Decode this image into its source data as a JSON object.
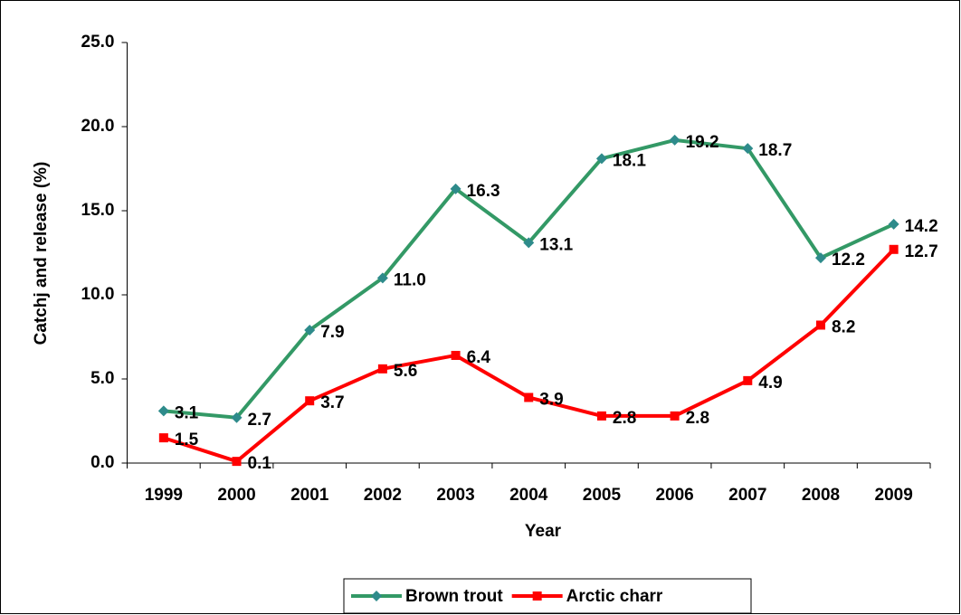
{
  "chart_data": {
    "type": "line",
    "categories": [
      "1999",
      "2000",
      "2001",
      "2002",
      "2003",
      "2004",
      "2005",
      "2006",
      "2007",
      "2008",
      "2009"
    ],
    "series": [
      {
        "name": "Brown trout",
        "color": "#339966",
        "marker": "diamond",
        "marker_color": "#2e8b8b",
        "values": [
          3.1,
          2.7,
          7.9,
          11.0,
          16.3,
          13.1,
          18.1,
          19.2,
          18.7,
          12.2,
          14.2
        ],
        "value_labels": [
          "3.1",
          "2.7",
          "7.9",
          "11.0",
          "16.3",
          "13.1",
          "18.1",
          "19.2",
          "18.7",
          "12.2",
          "14.2"
        ]
      },
      {
        "name": "Arctic charr",
        "color": "#ff0000",
        "marker": "square",
        "marker_color": "#ff0000",
        "values": [
          1.5,
          0.1,
          3.7,
          5.6,
          6.4,
          3.9,
          2.8,
          2.8,
          4.9,
          8.2,
          12.7
        ],
        "value_labels": [
          "1.5",
          "0.1",
          "3.7",
          "5.6",
          "6.4",
          "3.9",
          "2.8",
          "2.8",
          "4.9",
          "8.2",
          "12.7"
        ]
      }
    ],
    "x_label": "Year",
    "y_label": "Catchj and release (%)",
    "ylim": [
      0,
      25
    ],
    "yticks": [
      {
        "value": 0,
        "label": "0.0"
      },
      {
        "value": 5,
        "label": "5.0"
      },
      {
        "value": 10,
        "label": "10.0"
      },
      {
        "value": 15,
        "label": "15.0"
      },
      {
        "value": 20,
        "label": "20.0"
      },
      {
        "value": 25,
        "label": "25.0"
      }
    ],
    "grid": false,
    "legend": "bottom"
  }
}
